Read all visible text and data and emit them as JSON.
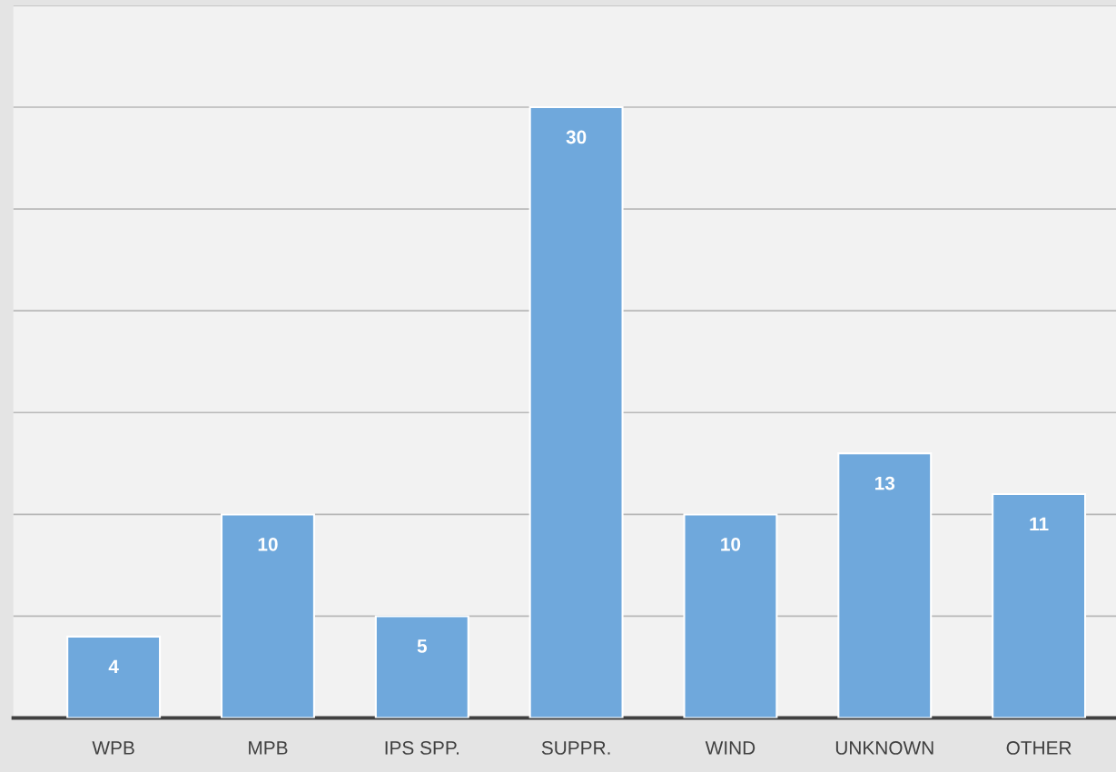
{
  "chart_data": {
    "type": "bar",
    "categories": [
      "WPB",
      "MPB",
      "IPS SPP.",
      "SUPPR.",
      "WIND",
      "UNKNOWN",
      "OTHER"
    ],
    "values": [
      4,
      10,
      5,
      30,
      10,
      13,
      11
    ],
    "color": "#6fa8dc",
    "ylim": [
      0,
      35
    ],
    "yticks": [
      {
        "value": 0,
        "label": null
      },
      {
        "value": 5,
        "label": null
      },
      {
        "value": 10,
        "label": null
      },
      {
        "value": 15,
        "label": null
      },
      {
        "value": 20,
        "label": null
      },
      {
        "value": 25,
        "label": null
      },
      {
        "value": 30,
        "label": null
      },
      {
        "value": 35,
        "label": null
      }
    ],
    "grid": "y",
    "data_labels": true
  }
}
